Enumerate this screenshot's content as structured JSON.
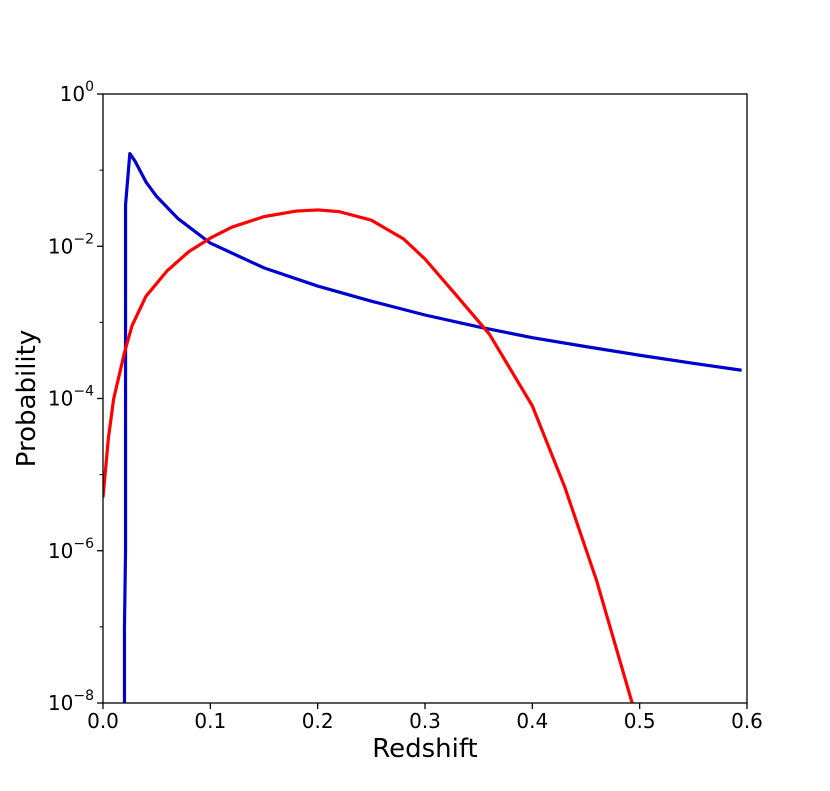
{
  "chart_data": {
    "type": "line",
    "title": "",
    "xlabel": "Redshift",
    "ylabel": "Probability",
    "xlim": [
      0.0,
      0.6
    ],
    "ylim": [
      1e-08,
      1
    ],
    "y_scale": "log",
    "grid": false,
    "x_ticks": [
      "0.0",
      "0.1",
      "0.2",
      "0.3",
      "0.4",
      "0.5",
      "0.6"
    ],
    "y_ticks": [
      {
        "base": "10",
        "exp": "0"
      },
      {
        "base": "10",
        "exp": "−2"
      },
      {
        "base": "10",
        "exp": "−4"
      },
      {
        "base": "10",
        "exp": "−6"
      },
      {
        "base": "10",
        "exp": "−8"
      }
    ],
    "series": [
      {
        "color": "#0000cc",
        "x": [
          0.02,
          0.02,
          0.021,
          0.021,
          0.025,
          0.03,
          0.04,
          0.05,
          0.07,
          0.1,
          0.15,
          0.2,
          0.25,
          0.3,
          0.35,
          0.4,
          0.45,
          0.5,
          0.55,
          0.595
        ],
        "y": [
          1e-08,
          1e-07,
          1e-06,
          0.035,
          0.165,
          0.13,
          0.07,
          0.045,
          0.023,
          0.011,
          0.0052,
          0.003,
          0.0019,
          0.00125,
          0.00087,
          0.00063,
          0.00048,
          0.00037,
          0.00029,
          0.000235
        ]
      },
      {
        "color": "#ff0000",
        "x": [
          0.0,
          0.005,
          0.01,
          0.02,
          0.027,
          0.04,
          0.06,
          0.08,
          0.1,
          0.12,
          0.15,
          0.18,
          0.2,
          0.22,
          0.25,
          0.28,
          0.3,
          0.33,
          0.36,
          0.4,
          0.43,
          0.46,
          0.493
        ],
        "y": [
          5e-06,
          3e-05,
          0.0001,
          0.0004,
          0.0009,
          0.0022,
          0.0048,
          0.0085,
          0.0128,
          0.0178,
          0.0245,
          0.029,
          0.03,
          0.0285,
          0.022,
          0.0125,
          0.0068,
          0.0022,
          0.0007,
          8e-05,
          7e-06,
          4e-07,
          1e-08
        ]
      }
    ]
  }
}
